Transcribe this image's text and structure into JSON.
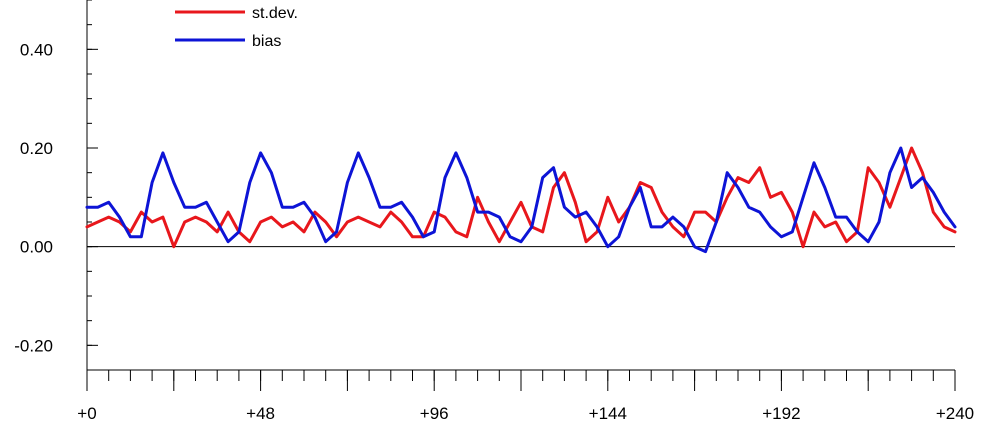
{
  "chart_data": {
    "type": "line",
    "title": "",
    "xlabel": "",
    "ylabel": "",
    "xlim": [
      0,
      240
    ],
    "ylim": [
      -0.25,
      0.5
    ],
    "x_ticks": [
      "+0",
      "+48",
      "+96",
      "+144",
      "+192",
      "+240"
    ],
    "x_tick_values": [
      0,
      48,
      96,
      144,
      192,
      240
    ],
    "y_ticks": [
      "-0.20",
      "0.00",
      "0.20",
      "0.40"
    ],
    "y_tick_values": [
      -0.2,
      0.0,
      0.2,
      0.4
    ],
    "zero_line": true,
    "legend_position": "top-left",
    "series": [
      {
        "name": "st.dev.",
        "color": "#e8171c",
        "x": [
          0,
          3,
          6,
          9,
          12,
          15,
          18,
          21,
          24,
          27,
          30,
          33,
          36,
          39,
          42,
          45,
          48,
          51,
          54,
          57,
          60,
          63,
          66,
          69,
          72,
          75,
          78,
          81,
          84,
          87,
          90,
          93,
          96,
          99,
          102,
          105,
          108,
          111,
          114,
          117,
          120,
          123,
          126,
          129,
          132,
          135,
          138,
          141,
          144,
          147,
          150,
          153,
          156,
          159,
          162,
          165,
          168,
          171,
          174,
          177,
          180,
          183,
          186,
          189,
          192,
          195,
          198,
          201,
          204,
          207,
          210,
          213,
          216,
          219,
          222,
          225,
          228,
          231,
          234,
          237,
          240
        ],
        "values": [
          0.04,
          0.05,
          0.06,
          0.05,
          0.03,
          0.07,
          0.05,
          0.06,
          0.0,
          0.05,
          0.06,
          0.05,
          0.03,
          0.07,
          0.03,
          0.01,
          0.05,
          0.06,
          0.04,
          0.05,
          0.03,
          0.07,
          0.05,
          0.02,
          0.05,
          0.06,
          0.05,
          0.04,
          0.07,
          0.05,
          0.02,
          0.02,
          0.07,
          0.06,
          0.03,
          0.02,
          0.1,
          0.05,
          0.01,
          0.05,
          0.09,
          0.04,
          0.03,
          0.12,
          0.15,
          0.09,
          0.01,
          0.03,
          0.1,
          0.05,
          0.08,
          0.13,
          0.12,
          0.07,
          0.04,
          0.02,
          0.07,
          0.07,
          0.05,
          0.1,
          0.14,
          0.13,
          0.16,
          0.1,
          0.11,
          0.07,
          0.0,
          0.07,
          0.04,
          0.05,
          0.01,
          0.03,
          0.16,
          0.13,
          0.08,
          0.14,
          0.2,
          0.15,
          0.07,
          0.04,
          0.03
        ]
      },
      {
        "name": "bias",
        "color": "#0d14d6",
        "x": [
          0,
          3,
          6,
          9,
          12,
          15,
          18,
          21,
          24,
          27,
          30,
          33,
          36,
          39,
          42,
          45,
          48,
          51,
          54,
          57,
          60,
          63,
          66,
          69,
          72,
          75,
          78,
          81,
          84,
          87,
          90,
          93,
          96,
          99,
          102,
          105,
          108,
          111,
          114,
          117,
          120,
          123,
          126,
          129,
          132,
          135,
          138,
          141,
          144,
          147,
          150,
          153,
          156,
          159,
          162,
          165,
          168,
          171,
          174,
          177,
          180,
          183,
          186,
          189,
          192,
          195,
          198,
          201,
          204,
          207,
          210,
          213,
          216,
          219,
          222,
          225,
          228,
          231,
          234,
          237,
          240
        ],
        "values": [
          0.08,
          0.08,
          0.09,
          0.06,
          0.02,
          0.02,
          0.13,
          0.19,
          0.13,
          0.08,
          0.08,
          0.09,
          0.05,
          0.01,
          0.03,
          0.13,
          0.19,
          0.15,
          0.08,
          0.08,
          0.09,
          0.06,
          0.01,
          0.03,
          0.13,
          0.19,
          0.14,
          0.08,
          0.08,
          0.09,
          0.06,
          0.02,
          0.03,
          0.14,
          0.19,
          0.14,
          0.07,
          0.07,
          0.06,
          0.02,
          0.01,
          0.04,
          0.14,
          0.16,
          0.08,
          0.06,
          0.07,
          0.04,
          0.0,
          0.02,
          0.08,
          0.12,
          0.04,
          0.04,
          0.06,
          0.04,
          0.0,
          -0.01,
          0.05,
          0.15,
          0.12,
          0.08,
          0.07,
          0.04,
          0.02,
          0.03,
          0.1,
          0.17,
          0.12,
          0.06,
          0.06,
          0.03,
          0.01,
          0.05,
          0.15,
          0.2,
          0.12,
          0.14,
          0.11,
          0.07,
          0.04
        ]
      }
    ]
  }
}
